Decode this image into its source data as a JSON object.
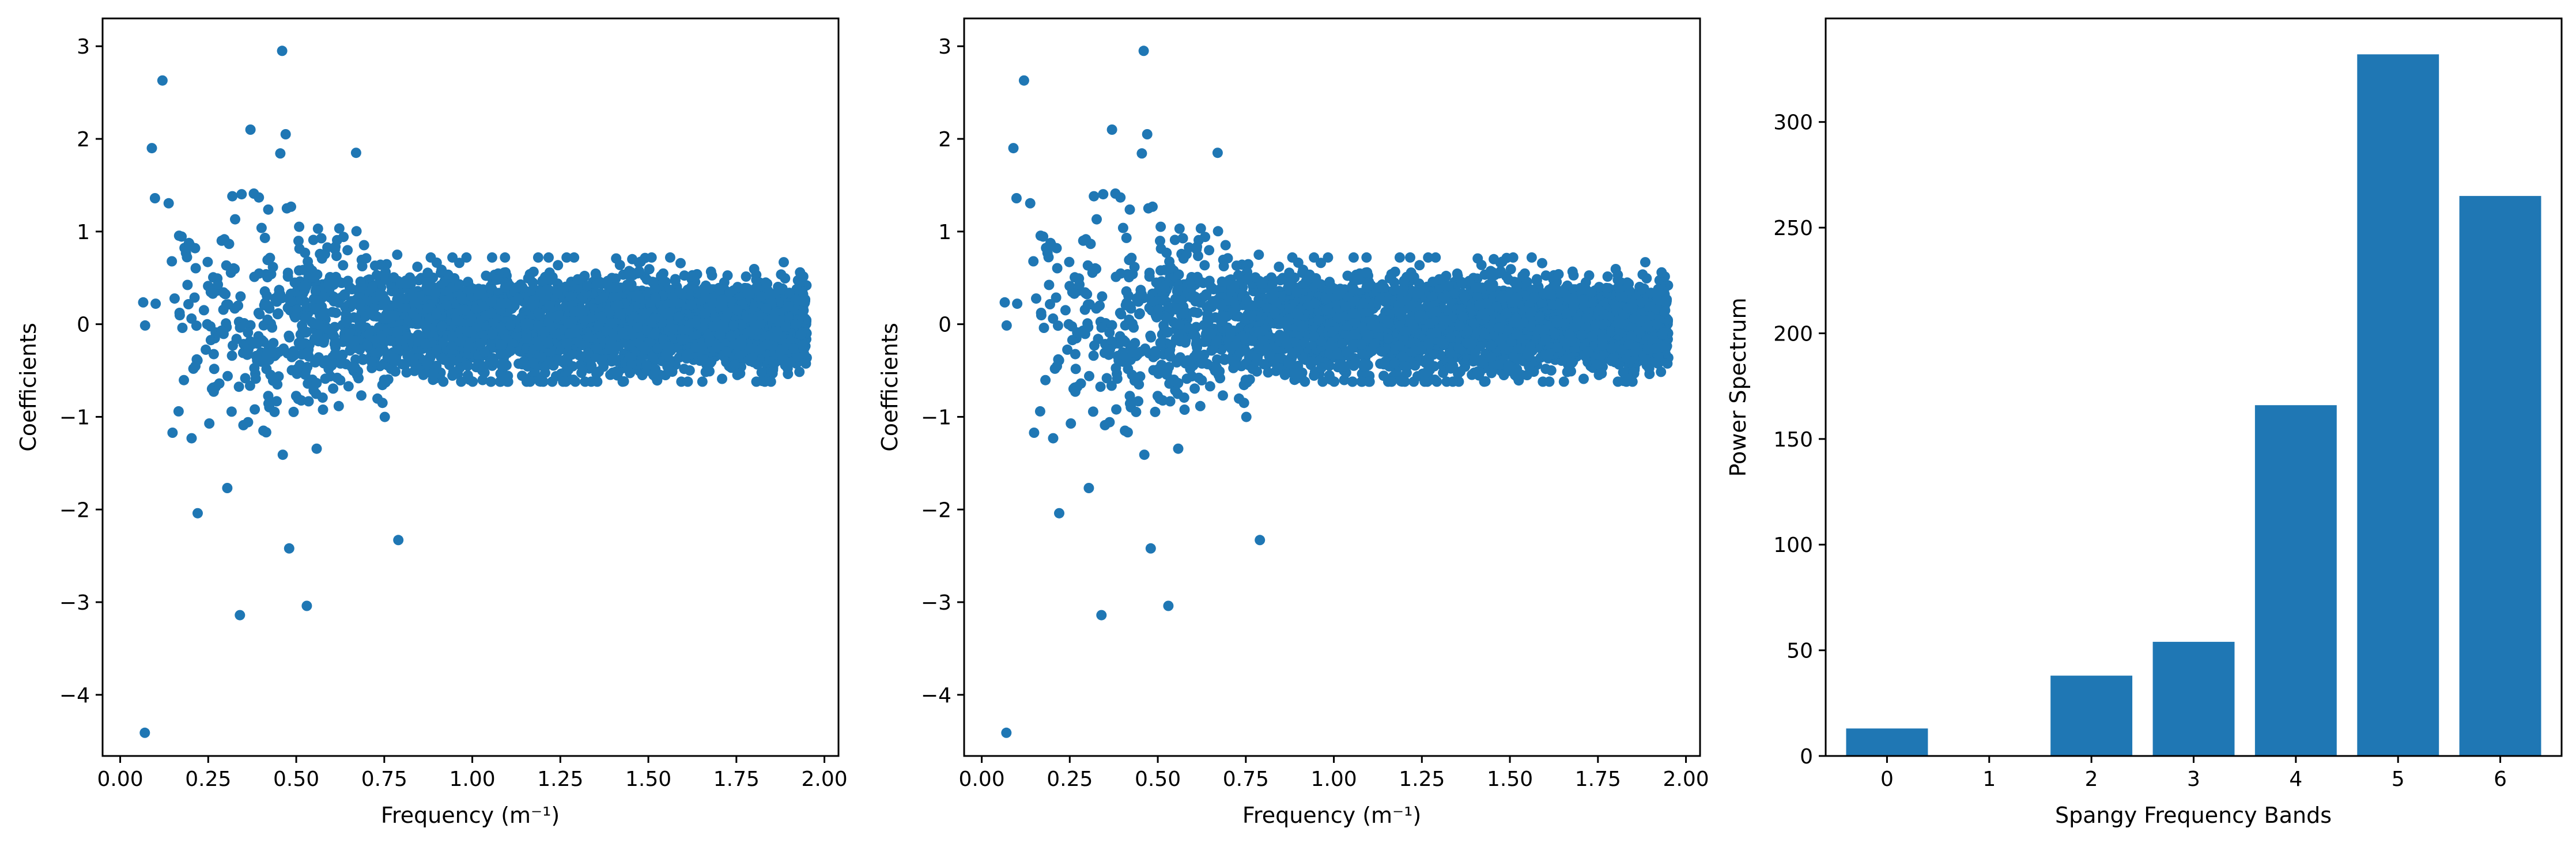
{
  "colors": {
    "marker": "#1f77b4",
    "axis": "#000000",
    "background": "#ffffff"
  },
  "chart_data": [
    {
      "type": "scatter",
      "xlabel": "Frequency (m⁻¹)",
      "ylabel": "Coefficients",
      "xlim": [
        -0.05,
        2.04
      ],
      "ylim": [
        -4.66,
        3.3
      ],
      "xticks": [
        "0.00",
        "0.25",
        "0.50",
        "0.75",
        "1.00",
        "1.25",
        "1.50",
        "1.75",
        "2.00"
      ],
      "yticks": [
        "−4",
        "−3",
        "−2",
        "−1",
        "0",
        "1",
        "2",
        "3"
      ],
      "x_range": [
        0.03,
        1.95
      ],
      "notable_points": [
        {
          "x": 0.07,
          "y": -4.41
        },
        {
          "x": 0.46,
          "y": 2.95
        },
        {
          "x": 0.12,
          "y": 2.63
        },
        {
          "x": 0.34,
          "y": -3.14
        },
        {
          "x": 0.53,
          "y": -3.04
        },
        {
          "x": 0.37,
          "y": 2.1
        },
        {
          "x": 0.47,
          "y": 2.05
        },
        {
          "x": 0.48,
          "y": -2.42
        },
        {
          "x": 0.79,
          "y": -2.33
        },
        {
          "x": 0.22,
          "y": -2.04
        },
        {
          "x": 0.09,
          "y": 1.9
        },
        {
          "x": 0.67,
          "y": 1.85
        }
      ]
    },
    {
      "type": "scatter",
      "xlabel": "Frequency (m⁻¹)",
      "ylabel": "Coefficients",
      "xlim": [
        -0.05,
        2.04
      ],
      "ylim": [
        -4.66,
        3.3
      ],
      "xticks": [
        "0.00",
        "0.25",
        "0.50",
        "0.75",
        "1.00",
        "1.25",
        "1.50",
        "1.75",
        "2.00"
      ],
      "yticks": [
        "−4",
        "−3",
        "−2",
        "−1",
        "0",
        "1",
        "2",
        "3"
      ],
      "x_range": [
        0.03,
        1.95
      ],
      "notable_points": [
        {
          "x": 0.07,
          "y": -4.41
        },
        {
          "x": 0.46,
          "y": 2.95
        },
        {
          "x": 0.12,
          "y": 2.63
        },
        {
          "x": 0.34,
          "y": -3.14
        },
        {
          "x": 0.53,
          "y": -3.04
        },
        {
          "x": 0.37,
          "y": 2.1
        },
        {
          "x": 0.47,
          "y": 2.05
        },
        {
          "x": 0.48,
          "y": -2.42
        },
        {
          "x": 0.79,
          "y": -2.33
        },
        {
          "x": 0.22,
          "y": -2.04
        },
        {
          "x": 0.09,
          "y": 1.9
        },
        {
          "x": 0.67,
          "y": 1.85
        }
      ]
    },
    {
      "type": "bar",
      "xlabel": "Spangy Frequency Bands",
      "ylabel": "Power Spectrum",
      "categories": [
        "0",
        "1",
        "2",
        "3",
        "4",
        "5",
        "6"
      ],
      "values": [
        13,
        0,
        38,
        54,
        166,
        332,
        265
      ],
      "ylim": [
        0,
        349
      ],
      "yticks": [
        "0",
        "50",
        "100",
        "150",
        "200",
        "250",
        "300"
      ]
    }
  ]
}
